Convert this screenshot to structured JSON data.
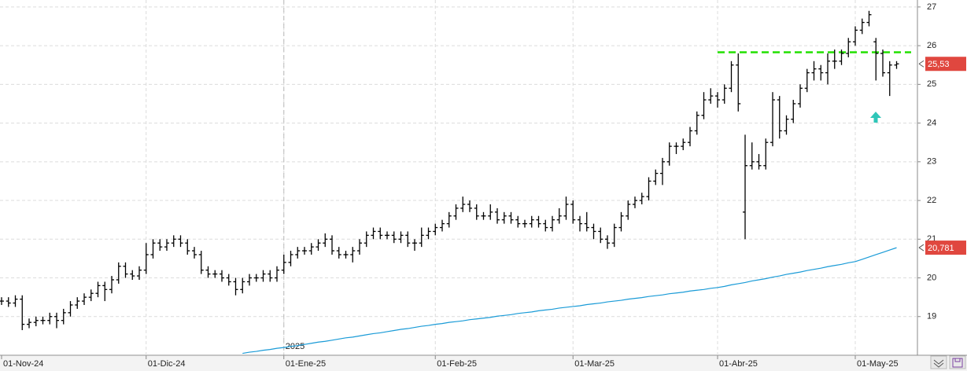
{
  "chart_data": {
    "type": "ohlc",
    "categories": [
      "01-Nov-24",
      null,
      null,
      null,
      null,
      null,
      null,
      null,
      null,
      null,
      null,
      null,
      null,
      null,
      null,
      null,
      null,
      null,
      null,
      null,
      null,
      "01-Dic-24",
      null,
      null,
      null,
      null,
      null,
      null,
      null,
      null,
      null,
      null,
      null,
      null,
      null,
      null,
      null,
      null,
      null,
      null,
      null,
      "01-Ene-25",
      null,
      null,
      null,
      null,
      null,
      null,
      null,
      null,
      null,
      null,
      null,
      null,
      null,
      null,
      null,
      null,
      null,
      null,
      null,
      null,
      null,
      "01-Feb-25",
      null,
      null,
      null,
      null,
      null,
      null,
      null,
      null,
      null,
      null,
      null,
      null,
      null,
      null,
      null,
      null,
      null,
      null,
      null,
      "01-Mar-25",
      null,
      null,
      null,
      null,
      null,
      null,
      null,
      null,
      null,
      null,
      null,
      null,
      null,
      null,
      null,
      null,
      null,
      null,
      null,
      null,
      "01-Abr-25",
      null,
      null,
      null,
      null,
      null,
      null,
      null,
      null,
      null,
      null,
      null,
      null,
      null,
      null,
      null,
      null,
      null,
      null,
      null,
      "01-May-25",
      null,
      null,
      null,
      null,
      null,
      null
    ],
    "open": [
      19.4,
      19.4,
      19.35,
      19.45,
      18.8,
      18.85,
      18.9,
      18.9,
      19.0,
      18.9,
      19.1,
      19.3,
      19.4,
      19.5,
      19.6,
      19.8,
      19.7,
      19.95,
      20.3,
      20.1,
      20.05,
      20.2,
      20.6,
      20.9,
      20.8,
      20.9,
      21.0,
      20.9,
      20.7,
      20.6,
      20.2,
      20.1,
      20.1,
      20.0,
      19.9,
      19.7,
      19.9,
      20.0,
      20.0,
      20.1,
      20.0,
      20.2,
      20.4,
      20.6,
      20.7,
      20.7,
      20.8,
      20.9,
      21.0,
      20.7,
      20.6,
      20.6,
      20.7,
      20.9,
      21.1,
      21.2,
      21.1,
      21.1,
      21.0,
      21.1,
      20.9,
      20.9,
      21.1,
      21.2,
      21.3,
      21.4,
      21.6,
      21.8,
      21.9,
      21.8,
      21.6,
      21.6,
      21.7,
      21.5,
      21.6,
      21.5,
      21.4,
      21.4,
      21.5,
      21.4,
      21.3,
      21.5,
      21.6,
      21.9,
      21.5,
      21.4,
      21.3,
      21.2,
      21.0,
      20.9,
      21.3,
      21.6,
      21.9,
      22.0,
      22.1,
      22.5,
      22.7,
      23.0,
      23.4,
      23.4,
      23.5,
      23.8,
      24.2,
      24.6,
      24.7,
      24.6,
      24.9,
      25.5,
      21.7,
      22.9,
      23.0,
      22.9,
      23.5,
      24.6,
      23.8,
      24.1,
      24.5,
      24.9,
      25.3,
      25.4,
      25.3,
      25.6,
      25.6,
      25.8,
      26.1,
      26.4,
      26.6,
      26.1,
      25.8,
      25.3,
      25.5
    ],
    "high": [
      19.5,
      19.5,
      19.55,
      19.55,
      18.95,
      19.0,
      19.0,
      19.1,
      19.1,
      19.2,
      19.4,
      19.5,
      19.6,
      19.7,
      19.9,
      19.9,
      20.05,
      20.4,
      20.4,
      20.2,
      20.3,
      20.9,
      21.0,
      21.0,
      21.0,
      21.1,
      21.1,
      21.0,
      20.8,
      20.7,
      20.3,
      20.2,
      20.2,
      20.1,
      20.0,
      20.0,
      20.1,
      20.1,
      20.2,
      20.2,
      20.3,
      20.6,
      20.7,
      20.8,
      20.8,
      20.9,
      21.0,
      21.15,
      21.1,
      20.8,
      20.7,
      20.8,
      21.0,
      21.2,
      21.3,
      21.3,
      21.2,
      21.2,
      21.2,
      21.2,
      21.0,
      21.3,
      21.3,
      21.4,
      21.5,
      21.7,
      21.9,
      22.1,
      22.0,
      21.9,
      21.7,
      21.9,
      21.8,
      21.7,
      21.7,
      21.6,
      21.5,
      21.6,
      21.6,
      21.5,
      21.6,
      21.8,
      22.1,
      22.0,
      21.6,
      21.7,
      21.4,
      21.3,
      21.1,
      21.4,
      21.7,
      22.0,
      22.1,
      22.2,
      22.6,
      22.8,
      23.1,
      23.5,
      23.5,
      23.6,
      23.9,
      24.3,
      24.8,
      24.9,
      24.8,
      25.0,
      25.6,
      25.8,
      23.7,
      23.5,
      23.2,
      23.6,
      24.8,
      24.7,
      24.2,
      24.6,
      25.0,
      25.4,
      25.6,
      25.5,
      25.8,
      25.9,
      25.9,
      26.2,
      26.5,
      26.7,
      26.9,
      26.2,
      25.9,
      25.6,
      25.6
    ],
    "low": [
      19.3,
      19.25,
      19.25,
      18.65,
      18.7,
      18.75,
      18.8,
      18.8,
      18.7,
      18.8,
      19.0,
      19.2,
      19.3,
      19.4,
      19.5,
      19.4,
      19.6,
      19.85,
      20.0,
      19.95,
      19.95,
      20.1,
      20.5,
      20.7,
      20.7,
      20.8,
      20.8,
      20.6,
      20.5,
      20.1,
      20.0,
      20.0,
      19.9,
      19.8,
      19.55,
      19.6,
      19.8,
      19.9,
      19.9,
      19.9,
      19.9,
      20.1,
      20.3,
      20.5,
      20.6,
      20.6,
      20.7,
      20.8,
      20.6,
      20.5,
      20.5,
      20.4,
      20.6,
      20.8,
      21.0,
      21.0,
      21.0,
      20.9,
      20.9,
      20.8,
      20.7,
      20.8,
      21.0,
      21.1,
      21.2,
      21.3,
      21.5,
      21.7,
      21.7,
      21.5,
      21.5,
      21.5,
      21.4,
      21.4,
      21.4,
      21.3,
      21.3,
      21.3,
      21.3,
      21.2,
      21.2,
      21.4,
      21.5,
      21.4,
      21.2,
      21.2,
      21.0,
      20.9,
      20.75,
      20.8,
      21.2,
      21.5,
      21.8,
      21.9,
      22.0,
      22.4,
      22.4,
      22.9,
      23.2,
      23.3,
      23.4,
      23.7,
      24.1,
      24.5,
      24.4,
      24.5,
      24.8,
      24.3,
      21.0,
      22.8,
      22.8,
      22.8,
      23.4,
      23.6,
      23.7,
      24.0,
      24.4,
      24.8,
      25.1,
      25.1,
      25.0,
      25.4,
      25.5,
      25.7,
      26.0,
      26.3,
      26.5,
      25.1,
      25.2,
      24.7,
      25.4
    ],
    "close": [
      19.4,
      19.35,
      19.45,
      18.8,
      18.85,
      18.9,
      18.9,
      19.0,
      18.9,
      19.1,
      19.3,
      19.4,
      19.5,
      19.6,
      19.8,
      19.7,
      19.95,
      20.3,
      20.1,
      20.05,
      20.2,
      20.6,
      20.9,
      20.8,
      20.9,
      21.0,
      20.9,
      20.7,
      20.6,
      20.2,
      20.1,
      20.1,
      20.0,
      19.9,
      19.7,
      19.9,
      20.0,
      20.0,
      20.1,
      20.0,
      20.2,
      20.4,
      20.6,
      20.7,
      20.7,
      20.8,
      20.9,
      21.0,
      20.7,
      20.6,
      20.6,
      20.7,
      20.9,
      21.1,
      21.2,
      21.1,
      21.1,
      21.0,
      21.1,
      20.9,
      20.9,
      21.1,
      21.2,
      21.3,
      21.4,
      21.6,
      21.8,
      21.9,
      21.8,
      21.6,
      21.6,
      21.7,
      21.5,
      21.6,
      21.5,
      21.4,
      21.4,
      21.5,
      21.4,
      21.3,
      21.5,
      21.6,
      21.9,
      21.5,
      21.4,
      21.3,
      21.2,
      21.0,
      20.9,
      21.3,
      21.6,
      21.9,
      22.0,
      22.1,
      22.5,
      22.7,
      23.0,
      23.4,
      23.4,
      23.5,
      23.8,
      24.2,
      24.6,
      24.7,
      24.6,
      24.9,
      25.5,
      24.5,
      22.9,
      23.0,
      22.9,
      23.5,
      24.6,
      23.8,
      24.1,
      24.5,
      24.9,
      25.3,
      25.4,
      25.3,
      25.6,
      25.6,
      25.8,
      26.1,
      26.4,
      26.6,
      26.8,
      25.8,
      25.3,
      25.5,
      25.53
    ],
    "color": "#000000",
    "moving_average": {
      "color": "#1a9bd7",
      "values": [
        null,
        null,
        null,
        null,
        null,
        null,
        null,
        null,
        null,
        null,
        null,
        null,
        null,
        null,
        null,
        null,
        null,
        null,
        null,
        null,
        null,
        null,
        null,
        null,
        null,
        null,
        null,
        null,
        null,
        null,
        null,
        null,
        null,
        null,
        null,
        18.05,
        18.08,
        18.1,
        18.13,
        18.15,
        18.18,
        18.2,
        18.23,
        18.25,
        18.28,
        18.31,
        18.34,
        18.36,
        18.39,
        18.42,
        18.45,
        18.47,
        18.5,
        18.53,
        18.56,
        18.58,
        18.61,
        18.64,
        18.67,
        18.69,
        18.72,
        18.75,
        18.77,
        18.8,
        18.82,
        18.85,
        18.87,
        18.89,
        18.92,
        18.94,
        18.96,
        18.98,
        19.01,
        19.03,
        19.05,
        19.08,
        19.1,
        19.12,
        19.15,
        19.17,
        19.19,
        19.22,
        19.24,
        19.26,
        19.28,
        19.31,
        19.33,
        19.35,
        19.38,
        19.4,
        19.42,
        19.45,
        19.47,
        19.49,
        19.52,
        19.54,
        19.56,
        19.59,
        19.61,
        19.63,
        19.66,
        19.68,
        19.7,
        19.73,
        19.75,
        19.78,
        19.82,
        19.85,
        19.88,
        19.92,
        19.95,
        19.98,
        20.02,
        20.05,
        20.09,
        20.12,
        20.15,
        20.19,
        20.22,
        20.25,
        20.29,
        20.32,
        20.35,
        20.39,
        20.42,
        20.48,
        20.54,
        20.6,
        20.66,
        20.72,
        20.78
      ]
    },
    "resistance": {
      "value": 25.83,
      "color": "#22e000"
    },
    "last_price": {
      "value": 25.53,
      "label": "25,53"
    },
    "ma_last": {
      "value": 20.781,
      "label": "20,781"
    },
    "year_label": "2025",
    "ylim": [
      18,
      27.18
    ],
    "yticks": [
      19,
      20,
      21,
      22,
      23,
      24,
      25,
      26,
      27
    ],
    "grid": true
  }
}
